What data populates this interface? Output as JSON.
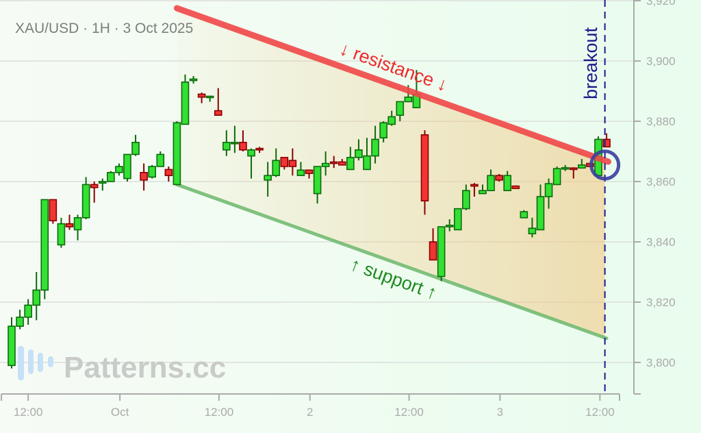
{
  "chart_data": {
    "type": "candlestick",
    "title": "XAU/USD · 1H · 3 Oct 2025",
    "ylim": [
      3790,
      3920
    ],
    "yticks": [
      3800,
      3820,
      3840,
      3860,
      3880,
      3900,
      3920
    ],
    "ytick_labels": [
      "3,800",
      "3,820",
      "3,840",
      "3,860",
      "3,880",
      "3,900",
      "3,920"
    ],
    "xticks": [
      {
        "label": "12:00",
        "x": 2
      },
      {
        "label": "Oct",
        "x": 13.1
      },
      {
        "label": "12:00",
        "x": 25.1
      },
      {
        "label": "2",
        "x": 36.1
      },
      {
        "label": "12:00",
        "x": 48.1
      },
      {
        "label": "3",
        "x": 59.1
      },
      {
        "label": "12:00",
        "x": 71.2
      }
    ],
    "grid": true,
    "candles_ohlc": [
      [
        3799,
        3815,
        3798,
        3812
      ],
      [
        3812,
        3817.5,
        3811,
        3815
      ],
      [
        3815,
        3821,
        3812.5,
        3819
      ],
      [
        3819,
        3830,
        3814,
        3824
      ],
      [
        3824,
        3854,
        3821,
        3854
      ],
      [
        3854,
        3854,
        3846,
        3847
      ],
      [
        3839,
        3848,
        3838,
        3846
      ],
      [
        3846,
        3849,
        3844,
        3845
      ],
      [
        3844,
        3849,
        3840.5,
        3848
      ],
      [
        3848,
        3861.5,
        3847.5,
        3859
      ],
      [
        3859,
        3860,
        3853,
        3858
      ],
      [
        3859.5,
        3861,
        3857,
        3860
      ],
      [
        3860,
        3863.5,
        3860,
        3863
      ],
      [
        3863,
        3866,
        3862,
        3865
      ],
      [
        3861,
        3869,
        3860,
        3869
      ],
      [
        3869,
        3875.5,
        3868.5,
        3873
      ],
      [
        3863,
        3866,
        3857,
        3860.5
      ],
      [
        3861.5,
        3865.5,
        3861,
        3865
      ],
      [
        3865,
        3870,
        3865,
        3869
      ],
      [
        3864,
        3865,
        3860,
        3862
      ],
      [
        3859,
        3880,
        3859,
        3879.5
      ],
      [
        3879,
        3895.5,
        3879,
        3893
      ],
      [
        3893.5,
        3895,
        3892.5,
        3894
      ],
      [
        3889,
        3889.5,
        3886,
        3888
      ],
      [
        3888,
        3888.5,
        3886.5,
        3888.3
      ],
      [
        3883.5,
        3891,
        3882,
        3882
      ],
      [
        3870.5,
        3877,
        3868.5,
        3873
      ],
      [
        3872.8,
        3878.5,
        3869.5,
        3873
      ],
      [
        3873,
        3877,
        3870,
        3870.5
      ],
      [
        3868.5,
        3871,
        3861,
        3870.5
      ],
      [
        3871,
        3871.5,
        3869.5,
        3870.5
      ],
      [
        3860.5,
        3866.5,
        3855,
        3862
      ],
      [
        3862,
        3871,
        3861.5,
        3867
      ],
      [
        3868,
        3868,
        3864,
        3865
      ],
      [
        3867,
        3871,
        3862,
        3865
      ],
      [
        3862,
        3866.5,
        3862,
        3863.8
      ],
      [
        3863.8,
        3864,
        3861,
        3862.7
      ],
      [
        3856,
        3865,
        3852.7,
        3865
      ],
      [
        3865,
        3870,
        3862,
        3866
      ],
      [
        3866.5,
        3868.5,
        3864.5,
        3866
      ],
      [
        3866.5,
        3867.5,
        3865.5,
        3865.5
      ],
      [
        3864,
        3871.5,
        3864,
        3868
      ],
      [
        3868,
        3874,
        3867,
        3870.5
      ],
      [
        3864,
        3874.5,
        3864,
        3868.5
      ],
      [
        3868.5,
        3878.5,
        3866,
        3874
      ],
      [
        3874.5,
        3880,
        3873,
        3879.5
      ],
      [
        3879,
        3883.5,
        3878.5,
        3881.5
      ],
      [
        3882,
        3886.5,
        3880,
        3886.5
      ],
      [
        3886.5,
        3892,
        3886.5,
        3888
      ],
      [
        3884.5,
        3897,
        3884.5,
        3889
      ],
      [
        3875.5,
        3877,
        3849,
        3853.6
      ],
      [
        3840,
        3844.5,
        3834,
        3834
      ],
      [
        3828.5,
        3845,
        3827,
        3845
      ],
      [
        3845,
        3847.5,
        3843.5,
        3845.5
      ],
      [
        3844,
        3851,
        3844,
        3851
      ],
      [
        3851,
        3859,
        3850.5,
        3857
      ],
      [
        3859,
        3859.5,
        3855,
        3858.5
      ],
      [
        3856,
        3859,
        3856,
        3857
      ],
      [
        3857,
        3864,
        3857,
        3862
      ],
      [
        3862,
        3862.5,
        3860,
        3860.5
      ],
      [
        3857,
        3863.5,
        3857,
        3862
      ],
      [
        3858.5,
        3858.7,
        3857.5,
        3857.7
      ],
      [
        3848,
        3850.5,
        3848,
        3850
      ],
      [
        3842.7,
        3848,
        3841.5,
        3844.5
      ],
      [
        3844,
        3859,
        3844,
        3855
      ],
      [
        3855,
        3861,
        3851,
        3859.3
      ],
      [
        3859,
        3865,
        3859,
        3864.3
      ],
      [
        3864.3,
        3865.5,
        3863.5,
        3864.6
      ],
      [
        3864.5,
        3864.7,
        3861,
        3864
      ],
      [
        3864.5,
        3867.5,
        3864.3,
        3865.5
      ],
      [
        3866,
        3866,
        3865,
        3865
      ],
      [
        3862,
        3875,
        3861,
        3874
      ],
      [
        3874,
        3876,
        3871.5,
        3871.5
      ]
    ],
    "resistance_line": {
      "from": [
        20,
        3917.5
      ],
      "to": [
        72.2,
        3866.6
      ],
      "label": "↓ resistance ↓",
      "color": "#f04848"
    },
    "support_line": {
      "from": [
        20,
        3859
      ],
      "to": [
        72,
        3808
      ],
      "label": "↑ support ↑",
      "color": "#6db86d"
    },
    "breakout": {
      "x": 71.8,
      "label": "breakout",
      "color": "#1a1a8a",
      "marker_price": 3865.5
    },
    "colors": {
      "up": "#33e033",
      "up_edge": "#0b6b0b",
      "down": "#f03535",
      "down_edge": "#8a0000",
      "channel_fill": "#f0c47c"
    }
  },
  "watermark": "Patterns.cc"
}
